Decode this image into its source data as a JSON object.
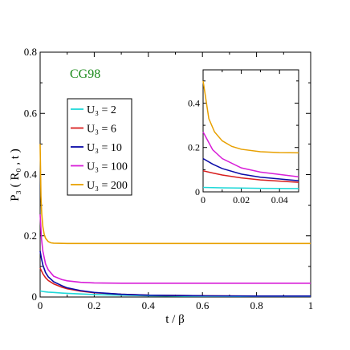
{
  "chart_data": [
    {
      "type": "line",
      "annotation": "CG98",
      "annotation_color": "#1a8a1a",
      "xlabel": "t / β",
      "ylabel": "P₃ ( R₀ , t )",
      "xlim": [
        0,
        1
      ],
      "ylim": [
        0,
        0.8
      ],
      "x_ticks": [
        0,
        0.2,
        0.4,
        0.6,
        0.8,
        1
      ],
      "x_tick_labels": [
        "0",
        "0.2",
        "0.4",
        "0.6",
        "0.8",
        "1"
      ],
      "y_ticks": [
        0,
        0.2,
        0.4,
        0.6,
        0.8
      ],
      "y_tick_labels": [
        "0",
        "0.2",
        "0.4",
        "0.6",
        "0.8"
      ],
      "grid": false,
      "legend_position": "upper-left",
      "series": [
        {
          "name": "U₃ = 2",
          "color": "#20d8d8",
          "x": [
            0,
            0.005,
            0.01,
            0.02,
            0.03,
            0.05,
            0.08,
            0.1,
            0.15,
            0.2,
            0.3,
            0.4,
            0.5,
            0.6,
            0.8,
            1.0
          ],
          "y": [
            0.02,
            0.019,
            0.018,
            0.017,
            0.016,
            0.015,
            0.013,
            0.012,
            0.01,
            0.008,
            0.006,
            0.004,
            0.003,
            0.002,
            0.002,
            0.002
          ]
        },
        {
          "name": "U₃ = 6",
          "color": "#d81e1e",
          "x": [
            0,
            0.005,
            0.01,
            0.02,
            0.03,
            0.05,
            0.08,
            0.1,
            0.15,
            0.2,
            0.3,
            0.4,
            0.5,
            0.6,
            0.8,
            1.0
          ],
          "y": [
            0.095,
            0.085,
            0.076,
            0.063,
            0.054,
            0.043,
            0.032,
            0.027,
            0.019,
            0.014,
            0.009,
            0.006,
            0.005,
            0.004,
            0.003,
            0.003
          ]
        },
        {
          "name": "U₃ = 10",
          "color": "#0a0aa8",
          "x": [
            0,
            0.005,
            0.01,
            0.02,
            0.03,
            0.05,
            0.08,
            0.1,
            0.15,
            0.2,
            0.3,
            0.4,
            0.5,
            0.6,
            0.8,
            1.0
          ],
          "y": [
            0.15,
            0.125,
            0.105,
            0.08,
            0.066,
            0.05,
            0.037,
            0.03,
            0.021,
            0.015,
            0.009,
            0.006,
            0.005,
            0.004,
            0.003,
            0.003
          ]
        },
        {
          "name": "U₃ = 100",
          "color": "#d81ed8",
          "x": [
            0,
            0.005,
            0.01,
            0.02,
            0.03,
            0.05,
            0.08,
            0.1,
            0.15,
            0.2,
            0.3,
            0.4,
            0.5,
            0.6,
            0.8,
            1.0
          ],
          "y": [
            0.27,
            0.19,
            0.15,
            0.108,
            0.089,
            0.068,
            0.057,
            0.053,
            0.048,
            0.046,
            0.045,
            0.045,
            0.045,
            0.045,
            0.045,
            0.045
          ]
        },
        {
          "name": "U₃ = 200",
          "color": "#e8a000",
          "x": [
            0,
            0.003,
            0.006,
            0.01,
            0.015,
            0.02,
            0.03,
            0.04,
            0.05,
            0.1,
            0.2,
            0.4,
            0.6,
            0.8,
            1.0
          ],
          "y": [
            0.5,
            0.33,
            0.27,
            0.23,
            0.205,
            0.192,
            0.181,
            0.177,
            0.176,
            0.175,
            0.175,
            0.175,
            0.175,
            0.175,
            0.175
          ]
        }
      ]
    },
    {
      "type": "line",
      "inset": true,
      "xlim": [
        0,
        0.05
      ],
      "ylim": [
        0,
        0.55
      ],
      "x_ticks": [
        0,
        0.02,
        0.04
      ],
      "x_tick_labels": [
        "0",
        "0.02",
        "0.04"
      ],
      "y_ticks": [
        0,
        0.2,
        0.4
      ],
      "y_tick_labels": [
        "0",
        "0.2",
        "0.4"
      ],
      "grid": false
    }
  ]
}
